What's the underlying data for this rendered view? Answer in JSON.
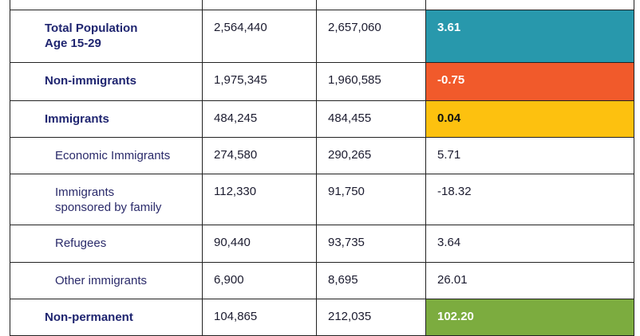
{
  "table": {
    "rows": [
      {
        "label_lines": [
          "Total Population",
          "Age 15-29"
        ],
        "col1": "2,564,440",
        "col2": "2,657,060",
        "change": "3.61",
        "highlight": "#2898ac",
        "change_color": "#ffffff",
        "bold": true
      },
      {
        "label_lines": [
          "Non-immigrants"
        ],
        "col1": "1,975,345",
        "col2": "1,960,585",
        "change": "-0.75",
        "highlight": "#f15a2b",
        "change_color": "#ffffff",
        "bold": true
      },
      {
        "label_lines": [
          "Immigrants"
        ],
        "col1": "484,245",
        "col2": "484,455",
        "change": "0.04",
        "highlight": "#fdc10f",
        "change_color": "#111111",
        "bold": true
      },
      {
        "label_lines": [
          "Economic Immigrants"
        ],
        "col1": "274,580",
        "col2": "290,265",
        "change": "5.71",
        "highlight": "",
        "change_color": "#1b1b2f",
        "bold": false
      },
      {
        "label_lines": [
          "Immigrants",
          "sponsored by family"
        ],
        "col1": "112,330",
        "col2": "91,750",
        "change": "-18.32",
        "highlight": "",
        "change_color": "#1b1b2f",
        "bold": false
      },
      {
        "label_lines": [
          "Refugees"
        ],
        "col1": "90,440",
        "col2": "93,735",
        "change": "3.64",
        "highlight": "",
        "change_color": "#1b1b2f",
        "bold": false
      },
      {
        "label_lines": [
          "Other immigrants"
        ],
        "col1": "6,900",
        "col2": "8,695",
        "change": "26.01",
        "highlight": "",
        "change_color": "#1b1b2f",
        "bold": false
      },
      {
        "label_lines": [
          "Non-permanent"
        ],
        "col1": "104,865",
        "col2": "212,035",
        "change": "102.20",
        "highlight": "#7cac3f",
        "change_color": "#ffffff",
        "bold": true
      }
    ]
  }
}
